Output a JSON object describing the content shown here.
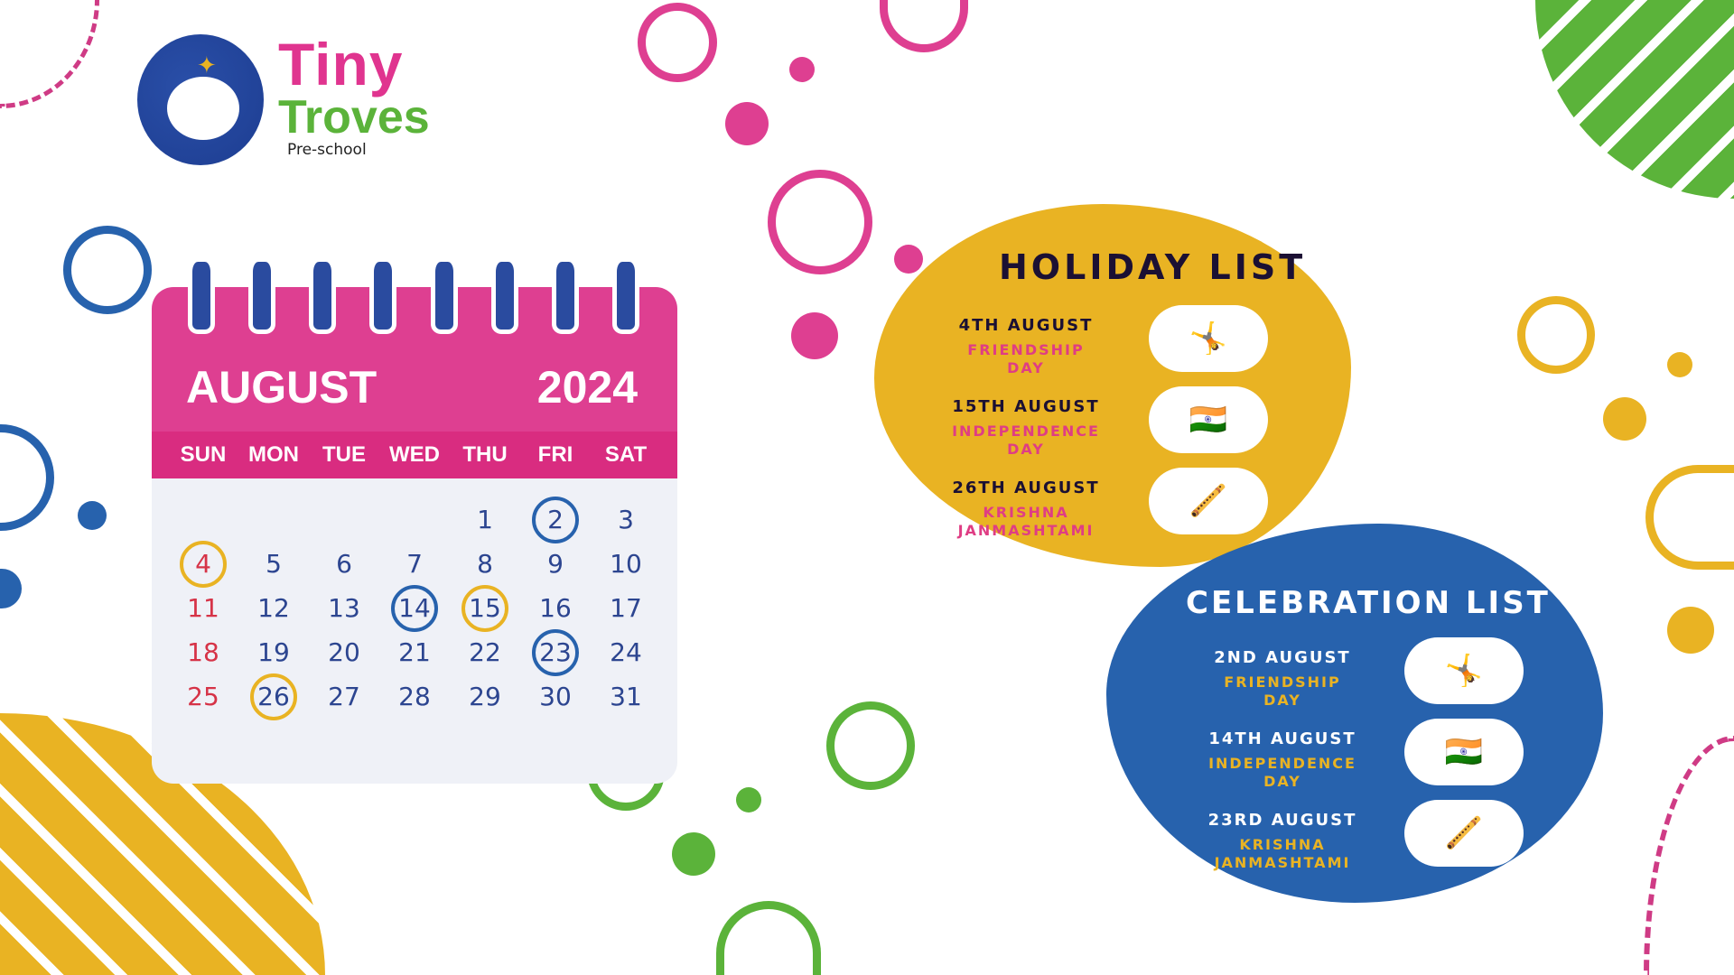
{
  "logo": {
    "line1": "Tiny",
    "line2": "Troves",
    "tagline": "Pre-school"
  },
  "calendar": {
    "month": "AUGUST",
    "year": "2024",
    "weekdays": [
      "SUN",
      "MON",
      "TUE",
      "WED",
      "THU",
      "FRI",
      "SAT"
    ],
    "first_weekday_offset": 4,
    "days": 31,
    "marked": {
      "2": "#2762ad",
      "4": "#e9b323",
      "14": "#2762ad",
      "15": "#e9b323",
      "23": "#2762ad",
      "26": "#e9b323"
    }
  },
  "holiday_list": {
    "title": "HOLIDAY LIST",
    "items": [
      {
        "date": "4TH AUGUST",
        "name_line1": "FRIENDSHIP",
        "name_line2": "DAY",
        "icon": "dancing-kids-icon"
      },
      {
        "date": "15TH AUGUST",
        "name_line1": "INDEPENDENCE",
        "name_line2": "DAY",
        "icon": "indian-flag-icon"
      },
      {
        "date": "26TH AUGUST",
        "name_line1": "KRISHNA",
        "name_line2": "JANMASHTAMI",
        "icon": "krishna-icon"
      }
    ]
  },
  "celebration_list": {
    "title": "CELEBRATION LIST",
    "items": [
      {
        "date": "2ND AUGUST",
        "name_line1": "FRIENDSHIP",
        "name_line2": "DAY",
        "icon": "dancing-kids-icon"
      },
      {
        "date": "14TH AUGUST",
        "name_line1": "INDEPENDENCE",
        "name_line2": "DAY",
        "icon": "indian-flag-icon"
      },
      {
        "date": "23RD AUGUST",
        "name_line1": "KRISHNA",
        "name_line2": "JANMASHTAMI",
        "icon": "krishna-icon"
      }
    ]
  },
  "colors": {
    "pink": "#de3f91",
    "blue": "#2762ad",
    "yellow": "#e9b323",
    "green": "#5bb33a",
    "sunday_red": "#d63347"
  }
}
